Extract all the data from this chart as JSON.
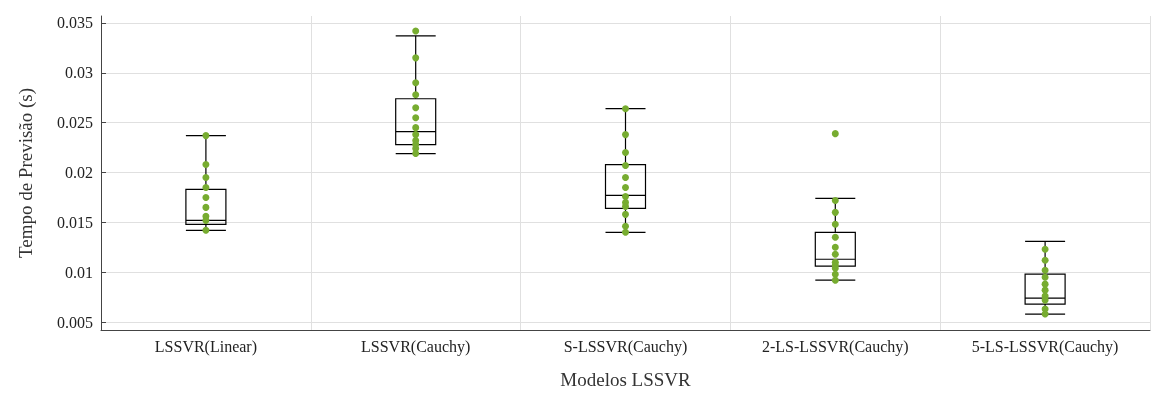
{
  "chart_data": {
    "type": "box",
    "xlabel": "Modelos LSSVR",
    "ylabel": "Tempo de Previsão (s)",
    "categories": [
      "LSSVR(Linear)",
      "LSSVR(Cauchy)",
      "S-LSSVR(Cauchy)",
      "2-LS-LSSVR(Cauchy)",
      "5-LS-LSSVR(Cauchy)"
    ],
    "ylim": [
      0.0042,
      0.0357
    ],
    "yticks": [
      0.005,
      0.01,
      0.015,
      0.02,
      0.025,
      0.03,
      0.035
    ],
    "grid": true,
    "series": [
      {
        "color": "#000000",
        "boxes": [
          {
            "low": 0.0142,
            "q1": 0.0148,
            "median": 0.0152,
            "q3": 0.0183,
            "high": 0.0237
          },
          {
            "low": 0.0219,
            "q1": 0.0228,
            "median": 0.0241,
            "q3": 0.0274,
            "high": 0.0337
          },
          {
            "low": 0.014,
            "q1": 0.0164,
            "median": 0.0177,
            "q3": 0.0208,
            "high": 0.0264
          },
          {
            "low": 0.0092,
            "q1": 0.0106,
            "median": 0.0113,
            "q3": 0.014,
            "high": 0.0174
          },
          {
            "low": 0.0058,
            "q1": 0.0068,
            "median": 0.0074,
            "q3": 0.0098,
            "high": 0.0131
          }
        ]
      },
      {
        "type": "scatter",
        "color": "#77ac30",
        "marker": "circle",
        "x": [
          "LSSVR(Linear)",
          "LSSVR(Linear)",
          "LSSVR(Linear)",
          "LSSVR(Linear)",
          "LSSVR(Linear)",
          "LSSVR(Linear)",
          "LSSVR(Linear)",
          "LSSVR(Linear)",
          "LSSVR(Linear)",
          "LSSVR(Cauchy)",
          "LSSVR(Cauchy)",
          "LSSVR(Cauchy)",
          "LSSVR(Cauchy)",
          "LSSVR(Cauchy)",
          "LSSVR(Cauchy)",
          "LSSVR(Cauchy)",
          "LSSVR(Cauchy)",
          "LSSVR(Cauchy)",
          "LSSVR(Cauchy)",
          "LSSVR(Cauchy)",
          "LSSVR(Cauchy)",
          "S-LSSVR(Cauchy)",
          "S-LSSVR(Cauchy)",
          "S-LSSVR(Cauchy)",
          "S-LSSVR(Cauchy)",
          "S-LSSVR(Cauchy)",
          "S-LSSVR(Cauchy)",
          "S-LSSVR(Cauchy)",
          "S-LSSVR(Cauchy)",
          "S-LSSVR(Cauchy)",
          "S-LSSVR(Cauchy)",
          "S-LSSVR(Cauchy)",
          "S-LSSVR(Cauchy)",
          "2-LS-LSSVR(Cauchy)",
          "2-LS-LSSVR(Cauchy)",
          "2-LS-LSSVR(Cauchy)",
          "2-LS-LSSVR(Cauchy)",
          "2-LS-LSSVR(Cauchy)",
          "2-LS-LSSVR(Cauchy)",
          "2-LS-LSSVR(Cauchy)",
          "2-LS-LSSVR(Cauchy)",
          "2-LS-LSSVR(Cauchy)",
          "2-LS-LSSVR(Cauchy)",
          "2-LS-LSSVR(Cauchy)",
          "2-LS-LSSVR(Cauchy)",
          "5-LS-LSSVR(Cauchy)",
          "5-LS-LSSVR(Cauchy)",
          "5-LS-LSSVR(Cauchy)",
          "5-LS-LSSVR(Cauchy)",
          "5-LS-LSSVR(Cauchy)",
          "5-LS-LSSVR(Cauchy)",
          "5-LS-LSSVR(Cauchy)",
          "5-LS-LSSVR(Cauchy)",
          "5-LS-LSSVR(Cauchy)",
          "5-LS-LSSVR(Cauchy)"
        ],
        "values": [
          0.0142,
          0.0152,
          0.0156,
          0.0165,
          0.0175,
          0.0185,
          0.0195,
          0.0208,
          0.0237,
          0.0219,
          0.0224,
          0.0228,
          0.0232,
          0.0238,
          0.0245,
          0.0255,
          0.0265,
          0.0278,
          0.029,
          0.0315,
          0.0342,
          0.014,
          0.0146,
          0.0158,
          0.0166,
          0.017,
          0.0176,
          0.0185,
          0.0195,
          0.0207,
          0.022,
          0.0238,
          0.0264,
          0.0092,
          0.0098,
          0.0104,
          0.0107,
          0.011,
          0.0118,
          0.0125,
          0.0135,
          0.0148,
          0.016,
          0.0172,
          0.0239,
          0.0058,
          0.0063,
          0.0072,
          0.0076,
          0.0082,
          0.0088,
          0.0095,
          0.0102,
          0.0112,
          0.0123
        ]
      }
    ]
  }
}
